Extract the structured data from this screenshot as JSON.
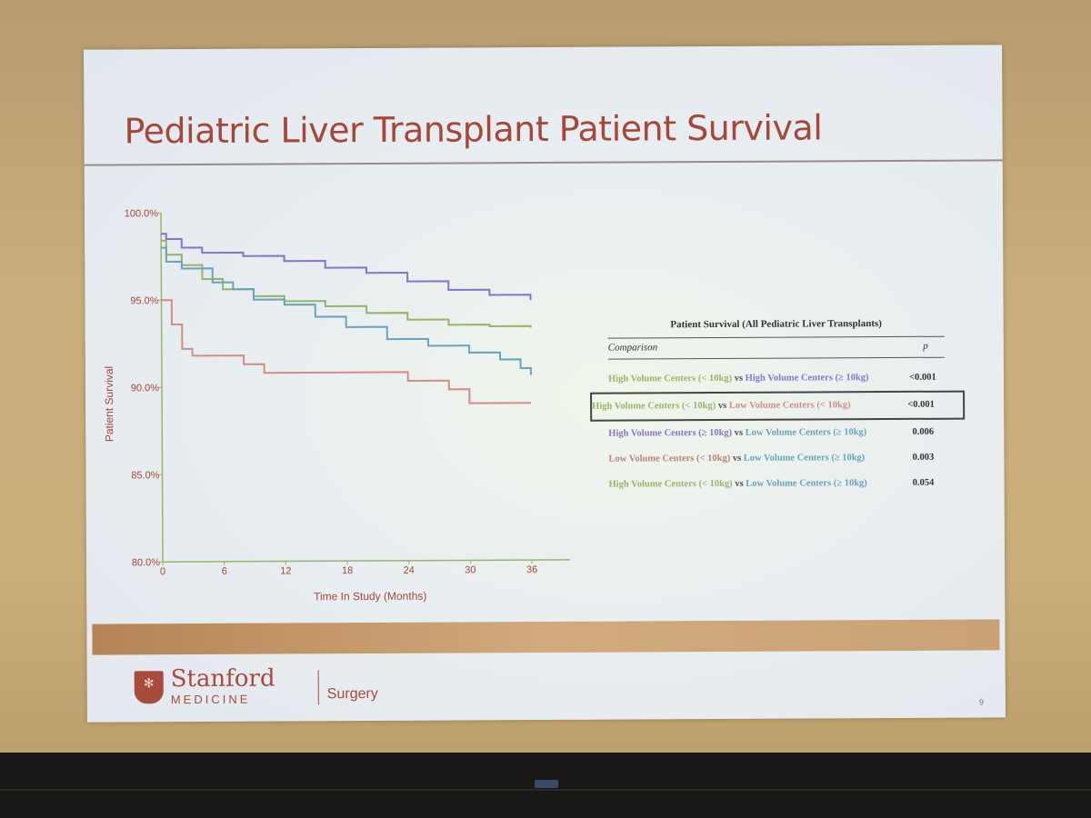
{
  "slide": {
    "title": "Pediatric Liver Transplant Patient Survival",
    "page_number": "9"
  },
  "logo": {
    "name": "Stanford",
    "sub": "MEDICINE",
    "department": "Surgery"
  },
  "colors": {
    "title": "#a5483a",
    "hv_lt10": "#98b46a",
    "hv_ge10": "#8a73cc",
    "lv_lt10": "#d08e86",
    "lv_ge10": "#6aa3bc"
  },
  "chart_data": {
    "type": "line",
    "xlabel": "Time In Study (Months)",
    "ylabel": "Patient Survival",
    "xlim": [
      0,
      36
    ],
    "ylim": [
      80,
      100
    ],
    "xticks": [
      "0",
      "6",
      "12",
      "18",
      "24",
      "30",
      "36"
    ],
    "yticks": [
      "80.0%",
      "85.0%",
      "90.0%",
      "95.0%",
      "100.0%"
    ],
    "series": [
      {
        "color": "#8a73cc",
        "points": [
          [
            0,
            98.8
          ],
          [
            0.5,
            98.5
          ],
          [
            2,
            98.0
          ],
          [
            4,
            97.7
          ],
          [
            8,
            97.5
          ],
          [
            12,
            97.2
          ],
          [
            16,
            96.8
          ],
          [
            20,
            96.5
          ],
          [
            24,
            96.0
          ],
          [
            28,
            95.5
          ],
          [
            32,
            95.2
          ],
          [
            36,
            94.9
          ]
        ]
      },
      {
        "color": "#98b46a",
        "points": [
          [
            0,
            98.4
          ],
          [
            0.5,
            97.6
          ],
          [
            2,
            97.0
          ],
          [
            4,
            96.2
          ],
          [
            6,
            95.6
          ],
          [
            9,
            95.2
          ],
          [
            12,
            94.9
          ],
          [
            16,
            94.6
          ],
          [
            20,
            94.2
          ],
          [
            24,
            93.8
          ],
          [
            28,
            93.5
          ],
          [
            32,
            93.4
          ],
          [
            36,
            93.3
          ]
        ]
      },
      {
        "color": "#6aa3bc",
        "points": [
          [
            0,
            98.0
          ],
          [
            0.5,
            97.2
          ],
          [
            2,
            96.8
          ],
          [
            5,
            96.0
          ],
          [
            7,
            95.6
          ],
          [
            9,
            95.0
          ],
          [
            12,
            94.7
          ],
          [
            15,
            94.0
          ],
          [
            18,
            93.4
          ],
          [
            22,
            92.7
          ],
          [
            26,
            92.3
          ],
          [
            30,
            91.9
          ],
          [
            33,
            91.5
          ],
          [
            35,
            91.0
          ],
          [
            36,
            90.6
          ]
        ]
      },
      {
        "color": "#d08e86",
        "points": [
          [
            0,
            95.0
          ],
          [
            1,
            93.6
          ],
          [
            2,
            92.2
          ],
          [
            3,
            91.8
          ],
          [
            8,
            91.3
          ],
          [
            10,
            90.8
          ],
          [
            24,
            90.3
          ],
          [
            28,
            89.8
          ],
          [
            30,
            89.0
          ],
          [
            36,
            89.0
          ]
        ]
      }
    ]
  },
  "table": {
    "title": "Patient Survival (All Pediatric Liver Transplants)",
    "header_comparison": "Comparison",
    "header_p": "p",
    "vs": "vs",
    "rows": [
      {
        "a": "High Volume Centers",
        "a_wt": "(< 10kg)",
        "b": "High Volume Centers",
        "b_wt": "(≥ 10kg)",
        "p": "<0.001"
      },
      {
        "a": "High Volume Centers",
        "a_wt": "(< 10kg)",
        "b": "Low Volume Centers",
        "b_wt": "(< 10kg)",
        "p": "<0.001"
      },
      {
        "a": "High Volume Centers",
        "a_wt": "(≥ 10kg)",
        "b": "Low Volume Centers",
        "b_wt": "(≥ 10kg)",
        "p": "0.006"
      },
      {
        "a": "Low Volume Centers",
        "a_wt": "(< 10kg)",
        "b": "Low Volume Centers",
        "b_wt": "(≥ 10kg)",
        "p": "0.003"
      },
      {
        "a": "High Volume Centers",
        "a_wt": "(< 10kg)",
        "b": "Low Volume Centers",
        "b_wt": "(≥ 10kg)",
        "p": "0.054"
      }
    ]
  }
}
